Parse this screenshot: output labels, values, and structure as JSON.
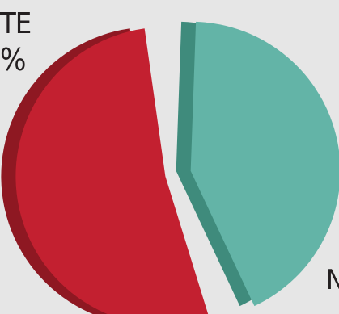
{
  "chart_data": {
    "type": "pie",
    "title": "",
    "slices": [
      {
        "name": "",
        "value": 57,
        "color": "#c32030",
        "side_color": "#8e1822"
      },
      {
        "name": "",
        "value": 43,
        "color": "#63b4a7",
        "side_color": "#3f8b7c"
      }
    ],
    "legend": "none",
    "partial_labels": [
      "TE",
      "%",
      "N"
    ]
  },
  "background": "#e6e6e6"
}
